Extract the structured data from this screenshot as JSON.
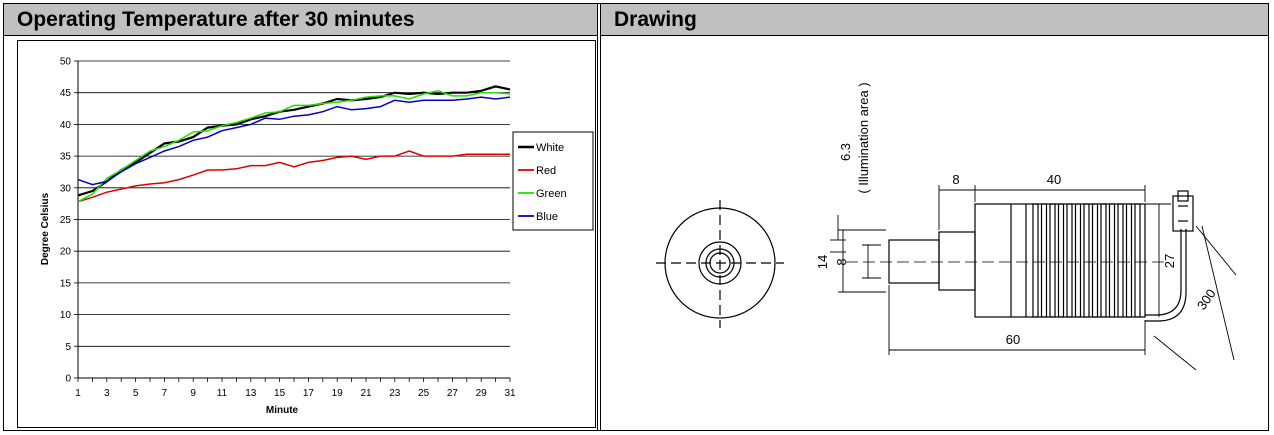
{
  "headers": {
    "left": "Operating Temperature after 30 minutes",
    "right": "Drawing"
  },
  "chart_data": {
    "type": "line",
    "title": "",
    "xlabel": "Minute",
    "ylabel": "Degree Celsius",
    "ylim": [
      0,
      50
    ],
    "yticks": [
      0,
      5,
      10,
      15,
      20,
      25,
      30,
      35,
      40,
      45,
      50
    ],
    "xticks": [
      1,
      3,
      5,
      7,
      9,
      11,
      13,
      15,
      17,
      19,
      21,
      23,
      25,
      27,
      29,
      31
    ],
    "grid": "horizontal",
    "legend": "right",
    "x": [
      1,
      2,
      3,
      4,
      5,
      6,
      7,
      8,
      9,
      10,
      11,
      12,
      13,
      14,
      15,
      16,
      17,
      18,
      19,
      20,
      21,
      22,
      23,
      24,
      25,
      26,
      27,
      28,
      29,
      30,
      31
    ],
    "series": [
      {
        "name": "White",
        "color": "#000000",
        "values": [
          28.8,
          29.5,
          31.0,
          32.8,
          34.0,
          35.5,
          37.0,
          37.3,
          38.0,
          39.5,
          39.8,
          40.0,
          40.8,
          41.3,
          42.0,
          42.3,
          42.8,
          43.3,
          44.0,
          43.8,
          44.0,
          44.3,
          45.0,
          44.8,
          45.0,
          44.8,
          45.0,
          45.0,
          45.3,
          46.0,
          45.5
        ]
      },
      {
        "name": "Red",
        "color": "#e00000",
        "values": [
          27.8,
          28.5,
          29.3,
          29.8,
          30.3,
          30.6,
          30.8,
          31.3,
          32.0,
          32.8,
          32.8,
          33.0,
          33.5,
          33.5,
          34.0,
          33.3,
          34.0,
          34.3,
          34.8,
          35.0,
          34.5,
          35.0,
          35.0,
          35.8,
          35.0,
          35.0,
          35.0,
          35.3,
          35.3,
          35.3,
          35.3
        ]
      },
      {
        "name": "Green",
        "color": "#22e000",
        "values": [
          27.8,
          29.0,
          31.5,
          32.8,
          34.3,
          35.8,
          36.5,
          37.5,
          38.8,
          39.0,
          39.8,
          40.3,
          41.0,
          41.8,
          42.0,
          43.0,
          43.0,
          43.3,
          43.5,
          43.8,
          44.3,
          44.5,
          44.5,
          44.0,
          44.8,
          45.3,
          44.5,
          44.5,
          45.0,
          45.0,
          44.8
        ]
      },
      {
        "name": "Blue",
        "color": "#0000cc",
        "values": [
          31.3,
          30.5,
          31.0,
          32.5,
          33.8,
          34.8,
          35.8,
          36.5,
          37.5,
          38.0,
          39.0,
          39.5,
          40.0,
          41.0,
          40.8,
          41.3,
          41.5,
          42.0,
          42.8,
          42.3,
          42.5,
          42.8,
          43.8,
          43.5,
          43.8,
          43.8,
          43.8,
          44.0,
          44.3,
          44.0,
          44.3
        ]
      }
    ]
  },
  "drawing": {
    "labels": {
      "illum_value": "6.3",
      "illum_note": "( Illumination area )",
      "dim_8_top": "8",
      "dim_40": "40",
      "dim_14": "14",
      "dim_8_side": "8",
      "dim_27": "27",
      "dim_300": "300",
      "dim_60": "60"
    }
  }
}
